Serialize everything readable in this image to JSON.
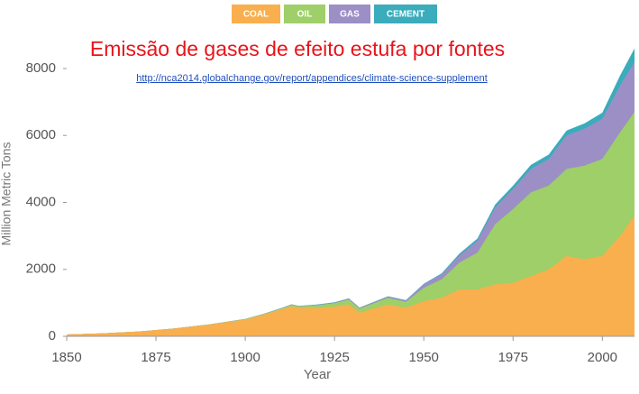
{
  "chart_data": {
    "type": "area",
    "stacked": true,
    "title": "Emissão de gases de efeito estufa por fontes",
    "subtitle": "http://nca2014.globalchange.gov/report/appendices/climate-science-supplement",
    "xlabel": "Year",
    "ylabel": "Million Metric Tons",
    "x": [
      1850,
      1860,
      1870,
      1880,
      1890,
      1900,
      1905,
      1910,
      1913,
      1915,
      1920,
      1925,
      1929,
      1932,
      1935,
      1940,
      1945,
      1950,
      1955,
      1960,
      1965,
      1970,
      1975,
      1980,
      1985,
      1990,
      1995,
      2000,
      2005,
      2009
    ],
    "series": [
      {
        "name": "COAL",
        "color": "#f9af4e",
        "values": [
          54,
          90,
          140,
          230,
          350,
          500,
          640,
          800,
          900,
          850,
          850,
          880,
          950,
          700,
          800,
          950,
          850,
          1050,
          1150,
          1400,
          1400,
          1550,
          1600,
          1800,
          2000,
          2400,
          2300,
          2400,
          3000,
          3600
        ]
      },
      {
        "name": "OIL",
        "color": "#9ecf69",
        "values": [
          0,
          0,
          0,
          2,
          5,
          15,
          20,
          30,
          40,
          45,
          80,
          110,
          150,
          130,
          150,
          200,
          180,
          400,
          550,
          800,
          1100,
          1800,
          2200,
          2500,
          2500,
          2600,
          2800,
          2900,
          3100,
          3100
        ]
      },
      {
        "name": "GAS",
        "color": "#9c8fc6",
        "values": [
          0,
          0,
          0,
          0,
          2,
          3,
          5,
          5,
          10,
          10,
          10,
          15,
          25,
          25,
          25,
          30,
          40,
          100,
          150,
          220,
          350,
          500,
          600,
          700,
          800,
          1000,
          1100,
          1200,
          1400,
          1500
        ]
      },
      {
        "name": "CEMENT",
        "color": "#3aacbb",
        "values": [
          0,
          0,
          0,
          0,
          0,
          0,
          0,
          5,
          5,
          5,
          10,
          10,
          10,
          5,
          10,
          15,
          10,
          20,
          30,
          50,
          70,
          90,
          100,
          120,
          130,
          150,
          160,
          180,
          300,
          400
        ]
      }
    ],
    "xlim": [
      1850,
      2009
    ],
    "ylim": [
      0,
      8700
    ],
    "xticks": [
      1850,
      1875,
      1900,
      1925,
      1950,
      1975,
      2000
    ],
    "yticks": [
      0,
      2000,
      4000,
      6000,
      8000
    ],
    "legend": "top"
  }
}
